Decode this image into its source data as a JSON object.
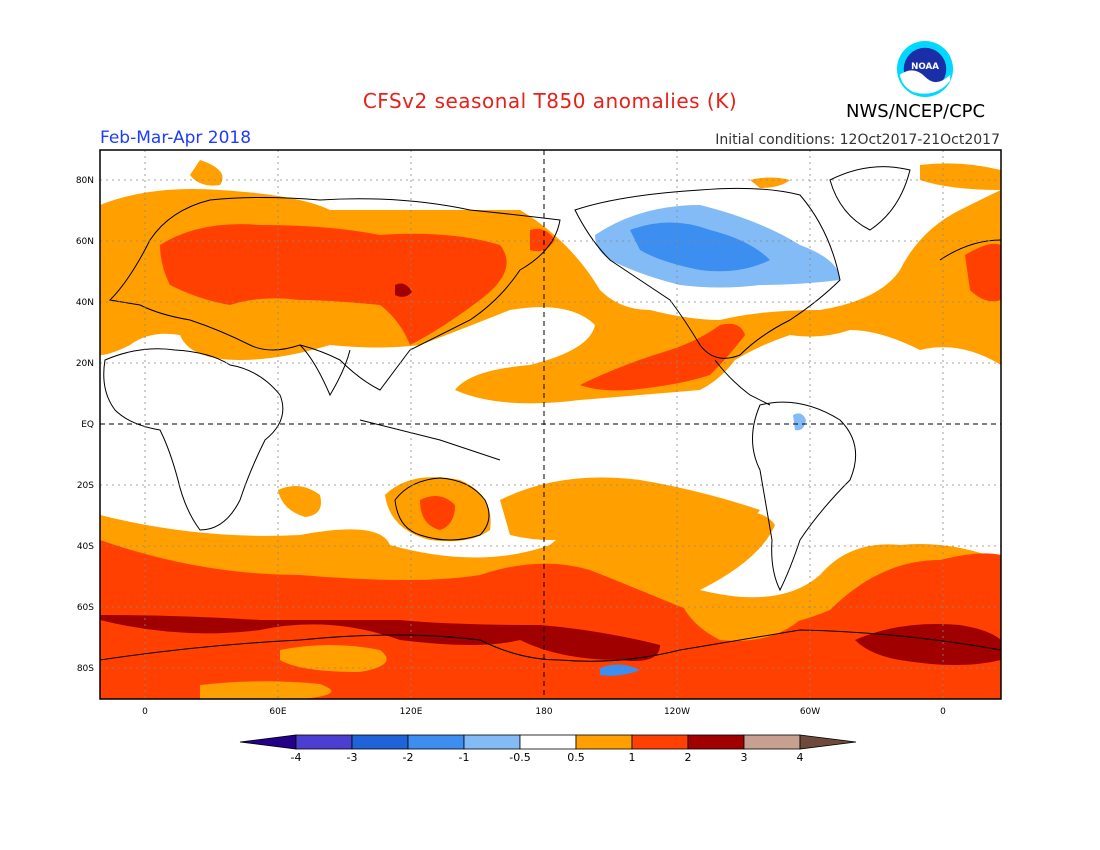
{
  "title": "CFSv2 seasonal T850 anomalies (K)",
  "organization": "NWS/NCEP/CPC",
  "logo_text": "NOAA",
  "season": "Feb-Mar-Apr 2018",
  "initial_conditions": "Initial conditions: 12Oct2017-21Oct2017",
  "lat_labels": [
    "80N",
    "60N",
    "40N",
    "20N",
    "EQ",
    "20S",
    "40S",
    "60S",
    "80S"
  ],
  "lon_labels": [
    "0",
    "60E",
    "120E",
    "180",
    "120W",
    "60W",
    "0"
  ],
  "colorbar": {
    "labels": [
      "-4",
      "-3",
      "-2",
      "-1",
      "-0.5",
      "0.5",
      "1",
      "2",
      "3",
      "4"
    ],
    "colors": [
      "#220088",
      "#4a3fd0",
      "#1e64d8",
      "#3c8ef0",
      "#82bbf5",
      "#ffffff",
      "#ffa000",
      "#ff4000",
      "#a00000",
      "#c8a090",
      "#6e4a3a"
    ]
  },
  "colors": {
    "title": "#e8201a",
    "season": "#1e3cff",
    "land_outline": "#000000"
  }
}
